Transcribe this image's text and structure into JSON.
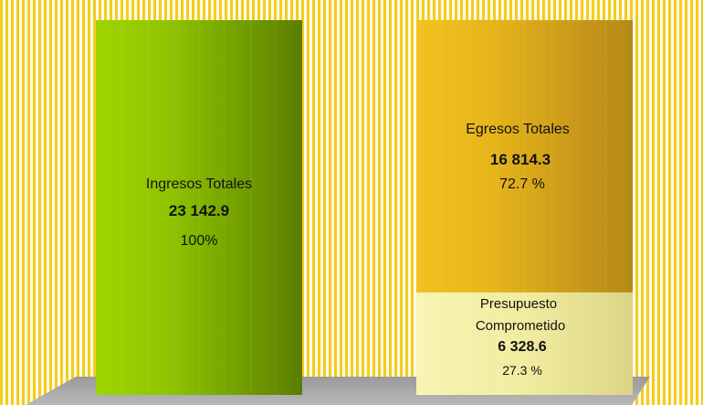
{
  "chart_data": {
    "type": "bar",
    "categories": [
      "Ingresos Totales",
      "Egresos Totales"
    ],
    "series": [
      {
        "values": [
          23142.9,
          16814.3
        ]
      },
      {
        "values": [
          null,
          6328.6
        ]
      }
    ],
    "ylim": [
      0,
      23142.9
    ],
    "labels": {
      "ingresos": {
        "name": "Ingresos Totales",
        "value": "23 142.9",
        "pct": "100%"
      },
      "egresos": {
        "name": "Egresos Totales",
        "value": "16 814.3",
        "pct": "72.7 %"
      },
      "comprometido": {
        "name_line1": "Presupuesto",
        "name_line2": "Comprometido",
        "value": "6 328.6",
        "pct": "27.3 %"
      }
    },
    "colors": {
      "background_stripe_a": "#fbfbe8",
      "background_stripe_b": "#f5cc1e",
      "ingresos": "#8ec400",
      "egresos": "#e8b818",
      "comprometido": "#f4f0a4",
      "floor": "#a0a0a0"
    },
    "grid": false,
    "legend": "none"
  }
}
